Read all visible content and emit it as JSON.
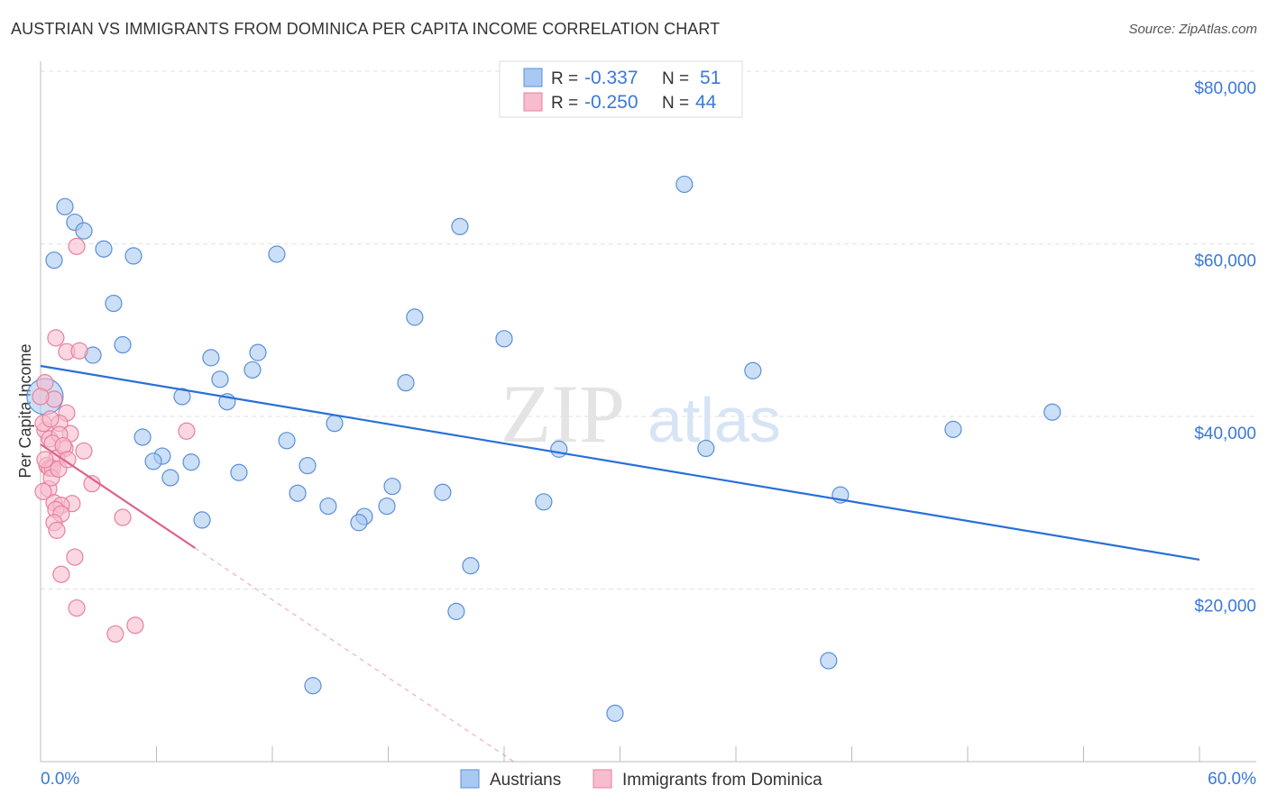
{
  "chart_data": {
    "type": "scatter",
    "title": "AUSTRIAN VS IMMIGRANTS FROM DOMINICA PER CAPITA INCOME CORRELATION CHART",
    "source": "Source: ZipAtlas.com",
    "ylabel": "Per Capita Income",
    "xlim": [
      0,
      60
    ],
    "ylim": [
      0,
      80000
    ],
    "x_tick_labels": [
      "0.0%",
      "60.0%"
    ],
    "y_ticks": [
      {
        "v": 20000,
        "label": "$20,000"
      },
      {
        "v": 40000,
        "label": "$40,000"
      },
      {
        "v": 60000,
        "label": "$60,000"
      },
      {
        "v": 80000,
        "label": "$80,000"
      }
    ],
    "grid": true,
    "legend_placement": "top-center",
    "watermark": "ZIPatlas",
    "series": [
      {
        "name": "Austrians",
        "color": "#a9c9f2",
        "stroke": "#5a8fd8",
        "line_color": "#2a6fd6",
        "R": "-0.337",
        "N": "51",
        "trend": [
          [
            0,
            45850
          ],
          [
            60,
            23400
          ]
        ],
        "points": [
          [
            1.26,
            64300
          ],
          [
            1.77,
            62500
          ],
          [
            2.24,
            61500
          ],
          [
            0.7,
            58100
          ],
          [
            3.27,
            59400
          ],
          [
            4.81,
            58600
          ],
          [
            3.78,
            53100
          ],
          [
            4.25,
            48300
          ],
          [
            2.71,
            47100
          ],
          [
            12.23,
            58800
          ],
          [
            21.71,
            62000
          ],
          [
            33.33,
            66900
          ],
          [
            19.37,
            51500
          ],
          [
            24.0,
            49000
          ],
          [
            11.25,
            47400
          ],
          [
            8.82,
            46800
          ],
          [
            10.97,
            45400
          ],
          [
            9.29,
            44300
          ],
          [
            7.33,
            42300
          ],
          [
            9.66,
            41700
          ],
          [
            18.91,
            43900
          ],
          [
            36.88,
            45300
          ],
          [
            52.38,
            40500
          ],
          [
            47.25,
            38500
          ],
          [
            15.22,
            39200
          ],
          [
            5.28,
            37600
          ],
          [
            6.3,
            35400
          ],
          [
            5.84,
            34800
          ],
          [
            7.8,
            34700
          ],
          [
            12.75,
            37200
          ],
          [
            26.84,
            36200
          ],
          [
            34.45,
            36300
          ],
          [
            10.27,
            33500
          ],
          [
            13.82,
            34300
          ],
          [
            6.72,
            32900
          ],
          [
            18.21,
            31900
          ],
          [
            13.31,
            31100
          ],
          [
            20.82,
            31200
          ],
          [
            14.89,
            29600
          ],
          [
            17.93,
            29600
          ],
          [
            16.76,
            28400
          ],
          [
            16.48,
            27700
          ],
          [
            26.05,
            30100
          ],
          [
            41.41,
            30900
          ],
          [
            8.36,
            28000
          ],
          [
            22.27,
            22700
          ],
          [
            21.52,
            17400
          ],
          [
            40.8,
            11700
          ],
          [
            14.1,
            8800
          ],
          [
            29.74,
            5600
          ],
          [
            0.23,
            42300
          ]
        ]
      },
      {
        "name": "Immigrants from Dominica",
        "color": "#f7bccd",
        "stroke": "#e8809f",
        "line_color": "#e0608a",
        "R": "-0.250",
        "N": "44",
        "trend": [
          [
            0,
            36760
          ],
          [
            8,
            24750
          ]
        ],
        "trend_dashed_to": [
          24.5,
          0
        ],
        "points": [
          [
            1.87,
            59700
          ],
          [
            0.79,
            49100
          ],
          [
            1.35,
            47500
          ],
          [
            2.01,
            47600
          ],
          [
            0.23,
            43900
          ],
          [
            0.7,
            42000
          ],
          [
            1.35,
            40400
          ],
          [
            0.98,
            39200
          ],
          [
            0.23,
            38400
          ],
          [
            7.56,
            38300
          ],
          [
            0.47,
            37400
          ],
          [
            1.54,
            38000
          ],
          [
            0.98,
            37900
          ],
          [
            1.26,
            36300
          ],
          [
            2.24,
            36000
          ],
          [
            0.61,
            36900
          ],
          [
            0.84,
            35200
          ],
          [
            0.33,
            34300
          ],
          [
            0.47,
            34000
          ],
          [
            0.61,
            34000
          ],
          [
            2.66,
            32200
          ],
          [
            0.42,
            31600
          ],
          [
            1.63,
            29900
          ],
          [
            0.7,
            30000
          ],
          [
            1.07,
            29700
          ],
          [
            0.79,
            29200
          ],
          [
            1.07,
            28700
          ],
          [
            4.25,
            28300
          ],
          [
            0.7,
            27700
          ],
          [
            0.84,
            26800
          ],
          [
            1.77,
            23700
          ],
          [
            1.07,
            21700
          ],
          [
            1.87,
            17800
          ],
          [
            4.9,
            15800
          ],
          [
            3.87,
            14800
          ],
          [
            0.14,
            39200
          ],
          [
            0.23,
            35000
          ],
          [
            0.56,
            32900
          ],
          [
            1.17,
            36600
          ],
          [
            0.93,
            33900
          ],
          [
            0,
            42300
          ],
          [
            0.51,
            39700
          ],
          [
            1.4,
            35000
          ],
          [
            0.14,
            31300
          ]
        ]
      }
    ],
    "legend_r_label": "R =",
    "legend_n_label": "N ="
  }
}
